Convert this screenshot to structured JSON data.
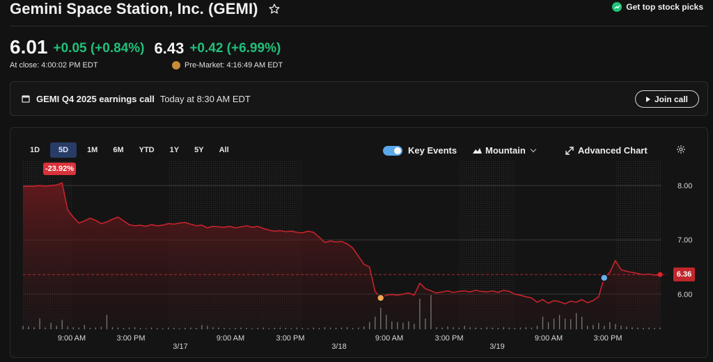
{
  "header": {
    "title": "Gemini Space Station, Inc. (GEMI)",
    "promo": "Get top stock picks"
  },
  "quote": {
    "close_price": "6.01",
    "close_change": "+0.05 (+0.84%)",
    "close_time": "At close: 4:00:02 PM EDT",
    "pre_price": "6.43",
    "pre_change": "+0.42 (+6.99%)",
    "pre_time": "Pre-Market: 4:16:49 AM EDT"
  },
  "earnings": {
    "event": "GEMI Q4 2025 earnings call",
    "when": "Today at 8:30 AM EDT",
    "join_label": "Join call"
  },
  "toolbar": {
    "ranges": [
      "1D",
      "5D",
      "1M",
      "6M",
      "YTD",
      "1Y",
      "5Y",
      "All"
    ],
    "active_range": "5D",
    "key_events": "Key Events",
    "chart_style": "Mountain",
    "advanced": "Advanced Chart"
  },
  "colors": {
    "line": "#c8232c",
    "up": "#21c07a",
    "active_range": "#283c66",
    "toggle": "#5aa8ec"
  },
  "chart_data": {
    "type": "area",
    "change_badge": "-23.92%",
    "last_value_label": "6.36",
    "reference_value": 6.36,
    "ylim": [
      5.35,
      8.45
    ],
    "y_ticks": [
      "8.00",
      "7.00",
      "6.00"
    ],
    "x_labels": [
      "9:00 AM",
      "3:00 PM",
      "9:00 AM",
      "3:00 PM",
      "9:00 AM",
      "3:00 PM",
      "9:00 AM",
      "3:00 PM"
    ],
    "date_labels": [
      "3/17",
      "3/18",
      "3/19"
    ],
    "series": [
      {
        "values": [
          7.98,
          7.99,
          7.99,
          8.0,
          7.99,
          8.0,
          8.01,
          8.05,
          7.55,
          7.42,
          7.31,
          7.35,
          7.4,
          7.36,
          7.3,
          7.33,
          7.38,
          7.42,
          7.35,
          7.28,
          7.26,
          7.27,
          7.25,
          7.28,
          7.26,
          7.27,
          7.3,
          7.29,
          7.31,
          7.32,
          7.29,
          7.26,
          7.27,
          7.22,
          7.25,
          7.24,
          7.23,
          7.25,
          7.22,
          7.24,
          7.26,
          7.23,
          7.25,
          7.21,
          7.18,
          7.16,
          7.17,
          7.15,
          7.16,
          7.14,
          7.13,
          7.16,
          7.14,
          7.05,
          6.95,
          6.98,
          6.96,
          6.97,
          6.93,
          6.85,
          6.7,
          6.55,
          6.5,
          6.05,
          5.93,
          5.98,
          5.99,
          5.98,
          6.0,
          6.02,
          5.98,
          6.2,
          6.1,
          6.06,
          6.02,
          6.04,
          6.06,
          6.03,
          6.05,
          6.06,
          6.04,
          6.07,
          6.05,
          6.04,
          6.06,
          6.03,
          6.07,
          6.05,
          6.0,
          5.98,
          5.95,
          5.93,
          5.85,
          5.9,
          5.83,
          5.88,
          5.86,
          5.82,
          5.87,
          5.85,
          5.9,
          5.84,
          5.88,
          5.95,
          6.3,
          6.4,
          6.62,
          6.45,
          6.42,
          6.4,
          6.38,
          6.36,
          6.37,
          6.35,
          6.36
        ]
      }
    ],
    "volume": [
      0.1,
      0.08,
      0.06,
      0.3,
      0.05,
      0.18,
      0.1,
      0.26,
      0.08,
      0.06,
      0.05,
      0.12,
      0.04,
      0.05,
      0.07,
      0.4,
      0.06,
      0.05,
      0.04,
      0.05,
      0.06,
      0.04,
      0.03,
      0.05,
      0.04,
      0.03,
      0.05,
      0.04,
      0.03,
      0.04,
      0.05,
      0.04,
      0.12,
      0.1,
      0.06,
      0.05,
      0.04,
      0.03,
      0.04,
      0.05,
      0.04,
      0.03,
      0.04,
      0.05,
      0.03,
      0.04,
      0.05,
      0.04,
      0.03,
      0.05,
      0.04,
      0.03,
      0.05,
      0.04,
      0.06,
      0.05,
      0.04,
      0.05,
      0.06,
      0.04,
      0.05,
      0.08,
      0.2,
      0.35,
      0.6,
      0.4,
      0.22,
      0.2,
      0.18,
      0.22,
      0.15,
      0.85,
      0.3,
      0.95,
      0.06,
      0.05,
      0.08,
      0.06,
      0.05,
      0.1,
      0.06,
      0.05,
      0.04,
      0.06,
      0.05,
      0.04,
      0.06,
      0.05,
      0.04,
      0.05,
      0.06,
      0.05,
      0.1,
      0.35,
      0.2,
      0.3,
      0.4,
      0.3,
      0.28,
      0.45,
      0.35,
      0.1,
      0.12,
      0.18,
      0.1,
      0.2,
      0.15,
      0.1,
      0.08,
      0.06,
      0.05,
      0.04,
      0.05,
      0.04,
      0.05
    ],
    "events": [
      {
        "index": 64,
        "color": "#f2a654"
      },
      {
        "index": 104,
        "color": "#6aaee8"
      }
    ]
  }
}
